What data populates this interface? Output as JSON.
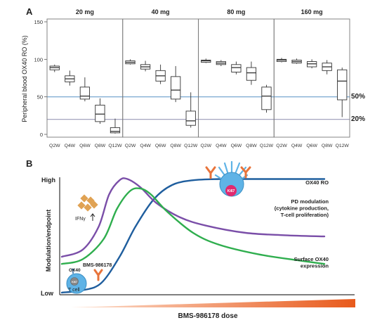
{
  "panel_a": {
    "letter": "A",
    "ylabel": "Peripheral blood OX40 RO (%)",
    "ref_labels": [
      "50%",
      "20%"
    ],
    "colors": {
      "ref_line": "#6a9ecb",
      "ref_line_2": "#9a9ab8",
      "box_stroke": "#333333",
      "frame": "#777777"
    }
  },
  "panel_b": {
    "letter": "B",
    "ylabel": "Modulation/endpoint",
    "y_high": "High",
    "y_low": "Low",
    "xlabel": "BMS-986178 dose",
    "icon_labels": {
      "ifn": "IFNγ",
      "drug": "BMS-986178",
      "ox40": "OX40",
      "ki67": "Ki67",
      "tcell": "T cell"
    },
    "colors": {
      "ox40_ro": "#1f5e9e",
      "pd_modulation": "#7a4ea8",
      "surface_ox40": "#2fae4e",
      "dose_gradient_start": "#fde0cf",
      "dose_gradient_end": "#e85a1c",
      "antibody": "#e8743b",
      "cell": "#5fb3e6",
      "ki67": "#e0296f",
      "ifn": "#e0a253"
    }
  },
  "chart_data": [
    {
      "type": "boxplot",
      "panel": "A",
      "ylabel": "Peripheral blood OX40 RO (%)",
      "ylim": [
        0,
        150
      ],
      "yticks": [
        0,
        50,
        100,
        150
      ],
      "reference_lines": [
        {
          "y": 50,
          "label": "50%"
        },
        {
          "y": 20,
          "label": "20%"
        }
      ],
      "facets": [
        {
          "title": "20 mg",
          "groups": [
            {
              "x": "Q2W",
              "min": 83,
              "q1": 86,
              "median": 89,
              "q3": 91,
              "max": 93
            },
            {
              "x": "Q4W",
              "min": 65,
              "q1": 70,
              "median": 74,
              "q3": 78,
              "max": 85
            },
            {
              "x": "Q6W",
              "min": 44,
              "q1": 47,
              "median": 51,
              "q3": 63,
              "max": 76
            },
            {
              "x": "Q8W",
              "min": 14,
              "q1": 17,
              "median": 27,
              "q3": 39,
              "max": 48
            },
            {
              "x": "Q12W",
              "min": 1,
              "q1": 2,
              "median": 4,
              "q3": 9,
              "max": 21
            }
          ]
        },
        {
          "title": "40 mg",
          "groups": [
            {
              "x": "Q2W",
              "min": 93,
              "q1": 94,
              "median": 96,
              "q3": 98,
              "max": 100
            },
            {
              "x": "Q4W",
              "min": 84,
              "q1": 87,
              "median": 90,
              "q3": 93,
              "max": 98
            },
            {
              "x": "Q6W",
              "min": 67,
              "q1": 71,
              "median": 78,
              "q3": 85,
              "max": 93
            },
            {
              "x": "Q8W",
              "min": 43,
              "q1": 47,
              "median": 59,
              "q3": 77,
              "max": 91
            },
            {
              "x": "Q12W",
              "min": 9,
              "q1": 12,
              "median": 18,
              "q3": 31,
              "max": 56
            }
          ]
        },
        {
          "title": "80 mg",
          "groups": [
            {
              "x": "Q2W",
              "min": 95,
              "q1": 96,
              "median": 98,
              "q3": 99,
              "max": 101
            },
            {
              "x": "Q4W",
              "min": 91,
              "q1": 93,
              "median": 95,
              "q3": 97,
              "max": 99
            },
            {
              "x": "Q6W",
              "min": 80,
              "q1": 83,
              "median": 89,
              "q3": 93,
              "max": 97
            },
            {
              "x": "Q8W",
              "min": 66,
              "q1": 72,
              "median": 82,
              "q3": 89,
              "max": 97
            },
            {
              "x": "Q12W",
              "min": 29,
              "q1": 33,
              "median": 51,
              "q3": 63,
              "max": 66
            }
          ]
        },
        {
          "title": "160 mg",
          "groups": [
            {
              "x": "Q2W",
              "min": 96,
              "q1": 97,
              "median": 99,
              "q3": 100,
              "max": 102
            },
            {
              "x": "Q4W",
              "min": 94,
              "q1": 95,
              "median": 97,
              "q3": 99,
              "max": 101
            },
            {
              "x": "Q6W",
              "min": 88,
              "q1": 90,
              "median": 94,
              "q3": 97,
              "max": 100
            },
            {
              "x": "Q8W",
              "min": 80,
              "q1": 85,
              "median": 90,
              "q3": 95,
              "max": 99
            },
            {
              "x": "Q12W",
              "min": 23,
              "q1": 46,
              "median": 71,
              "q3": 86,
              "max": 89
            }
          ]
        }
      ]
    },
    {
      "type": "line",
      "panel": "B",
      "xlabel": "BMS-986178 dose",
      "ylabel": "Modulation/endpoint",
      "xlim": [
        0,
        100
      ],
      "ylim": [
        0,
        100
      ],
      "series": [
        {
          "name": "OX40 RO",
          "color": "#1f5e9e",
          "x": [
            0,
            8,
            15,
            22,
            28,
            35,
            42,
            50,
            60,
            70,
            85,
            100
          ],
          "y": [
            0,
            2,
            8,
            30,
            55,
            78,
            90,
            94,
            95,
            95,
            95,
            95
          ]
        },
        {
          "name": "PD modulation\n(cytokine production,\nT-cell proliferation)",
          "color": "#7a4ea8",
          "x": [
            0,
            8,
            14,
            18,
            22,
            25,
            30,
            36,
            45,
            55,
            70,
            85,
            100
          ],
          "y": [
            30,
            36,
            55,
            82,
            94,
            95,
            88,
            75,
            63,
            56,
            50,
            48,
            47
          ]
        },
        {
          "name": "Surface OX40\nexpression",
          "color": "#2fae4e",
          "x": [
            0,
            8,
            16,
            21,
            26,
            30,
            34,
            40,
            50,
            60,
            75,
            90,
            100
          ],
          "y": [
            24,
            28,
            45,
            70,
            85,
            87,
            82,
            68,
            50,
            40,
            32,
            27,
            24
          ]
        }
      ]
    }
  ]
}
